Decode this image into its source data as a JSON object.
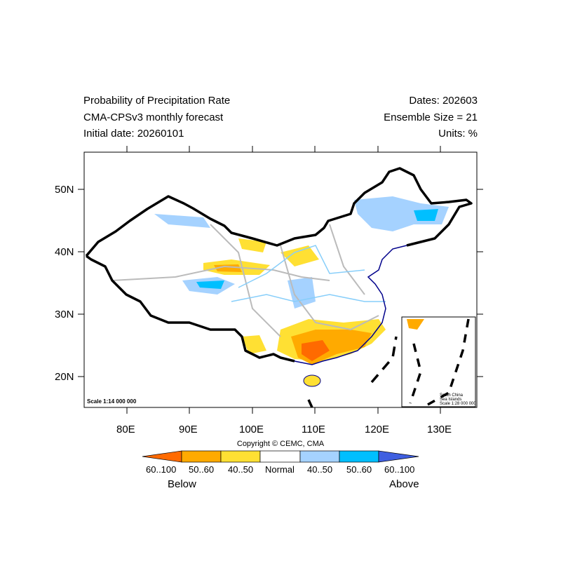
{
  "header": {
    "title": "Probability of Precipitation Rate",
    "model": "CMA-CPSv3 monthly forecast",
    "initial_date": "Initial date: 20260101",
    "dates": "Dates: 202603",
    "ensemble": "Ensemble Size = 21",
    "units": "Units: %"
  },
  "axes": {
    "lon_ticks": [
      "80E",
      "90E",
      "100E",
      "110E",
      "120E",
      "130E"
    ],
    "lat_ticks": [
      "50N",
      "40N",
      "30N",
      "20N"
    ]
  },
  "map": {
    "scale": "Scale 1:14 000 000",
    "inset_title1": "South China",
    "inset_title2": "Sea Islands",
    "inset_scale": "Scale 1:28 000 000"
  },
  "colorbar": {
    "copyright": "Copyright © CEMC, CMA",
    "labels": [
      "60..100",
      "50..60",
      "40..50",
      "Normal",
      "40..50",
      "50..60",
      "60..100"
    ],
    "colors": [
      "#ff6a00",
      "#ffaa00",
      "#ffe033",
      "#ffffff",
      "#a5d2ff",
      "#00bfff",
      "#3f5fe0"
    ],
    "below": "Below",
    "above": "Above"
  }
}
